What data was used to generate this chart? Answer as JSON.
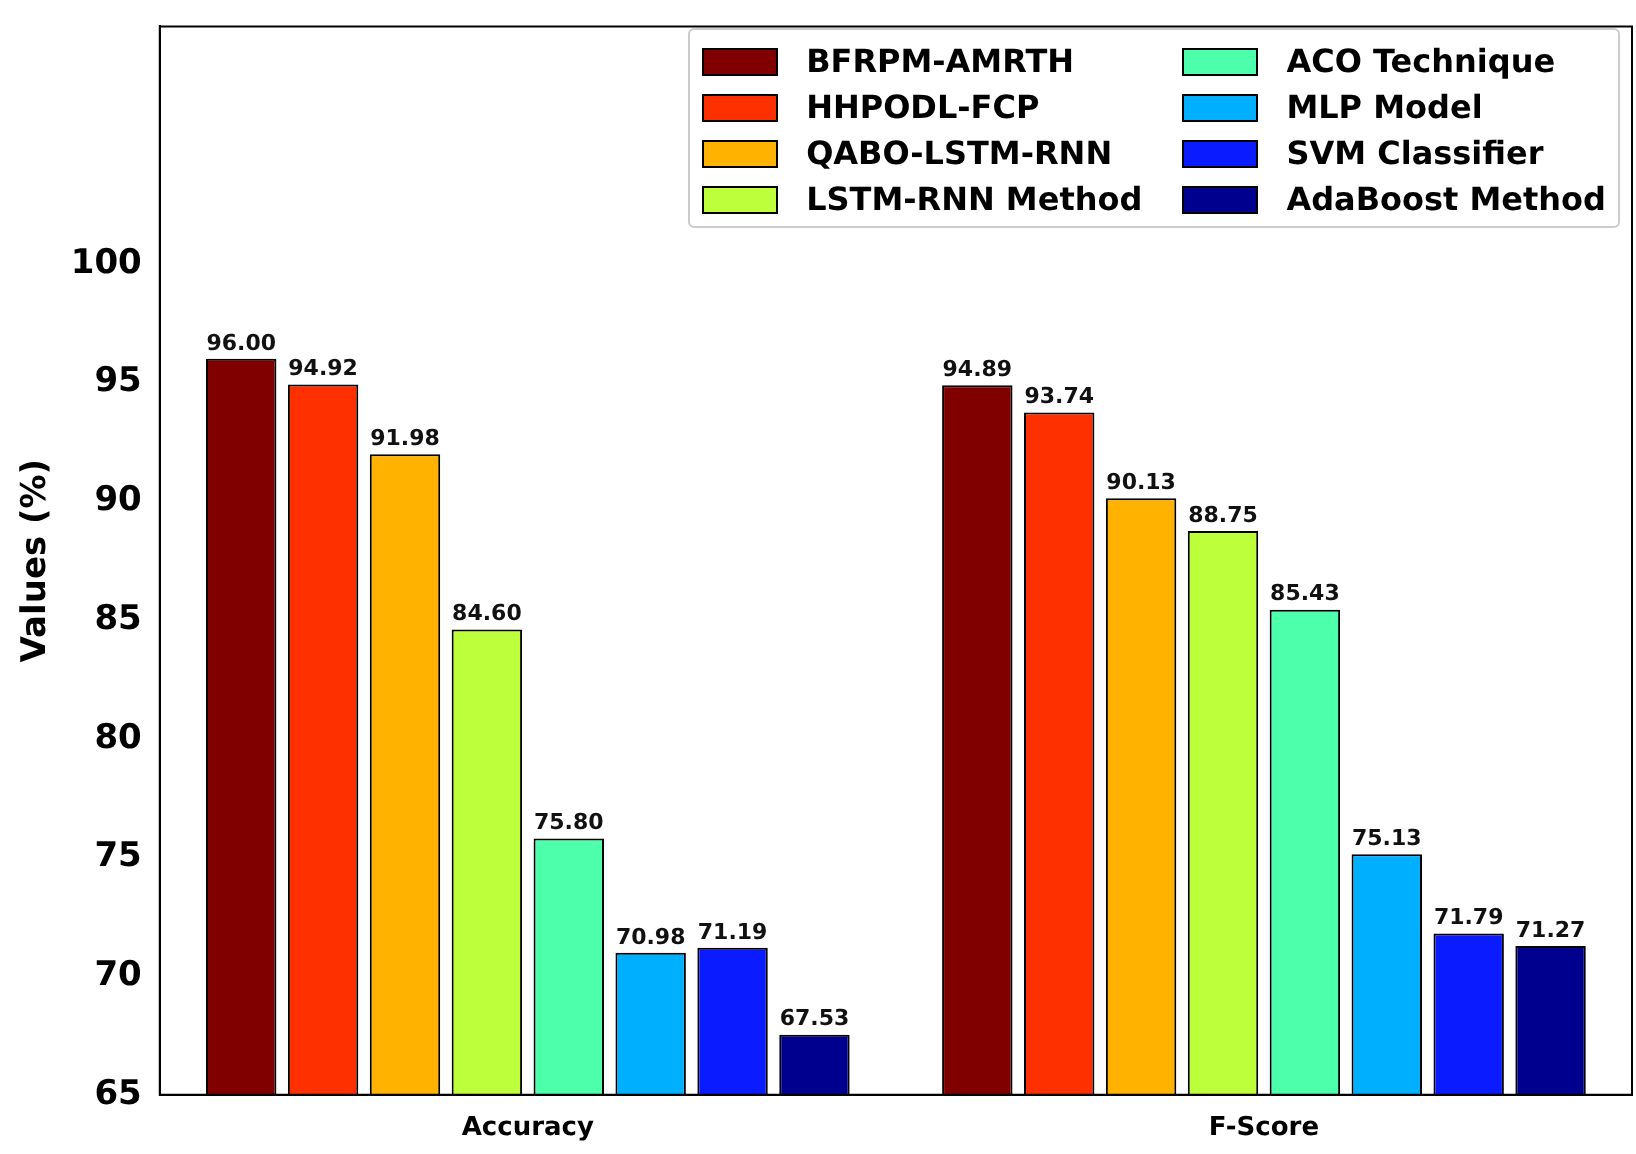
{
  "chart_data": {
    "type": "bar",
    "ylabel": "Values (%)",
    "categories": [
      "Accuracy",
      "F-Score"
    ],
    "series": [
      {
        "name": "BFRPM-AMRTH",
        "color": "#800000",
        "values": [
          96.0,
          94.89
        ],
        "value_labels": [
          "96.00",
          "94.89"
        ]
      },
      {
        "name": "HHPODL-FCP",
        "color": "#ff3000",
        "values": [
          94.92,
          93.74
        ],
        "value_labels": [
          "94.92",
          "93.74"
        ]
      },
      {
        "name": "QABO-LSTM-RNN",
        "color": "#ffb300",
        "values": [
          91.98,
          90.13
        ],
        "value_labels": [
          "91.98",
          "90.13"
        ]
      },
      {
        "name": "LSTM-RNN Method",
        "color": "#bcff3a",
        "values": [
          84.6,
          88.75
        ],
        "value_labels": [
          "84.60",
          "88.75"
        ]
      },
      {
        "name": "ACO Technique",
        "color": "#4dffaa",
        "values": [
          75.8,
          85.43
        ],
        "value_labels": [
          "75.80",
          "85.43"
        ]
      },
      {
        "name": "MLP Model",
        "color": "#00b0ff",
        "values": [
          70.98,
          75.13
        ],
        "value_labels": [
          "70.98",
          "75.13"
        ]
      },
      {
        "name": "SVM Classifier",
        "color": "#0a1cff",
        "values": [
          71.19,
          71.79
        ],
        "value_labels": [
          "71.19",
          "71.79"
        ]
      },
      {
        "name": "AdaBoost Method",
        "color": "#00008f",
        "values": [
          67.53,
          71.27
        ],
        "value_labels": [
          "67.53",
          "71.27"
        ]
      }
    ],
    "ylim": [
      65,
      110
    ],
    "yticks": [
      65,
      70,
      75,
      80,
      85,
      90,
      95,
      100
    ],
    "grid": false,
    "legend": "top right"
  }
}
